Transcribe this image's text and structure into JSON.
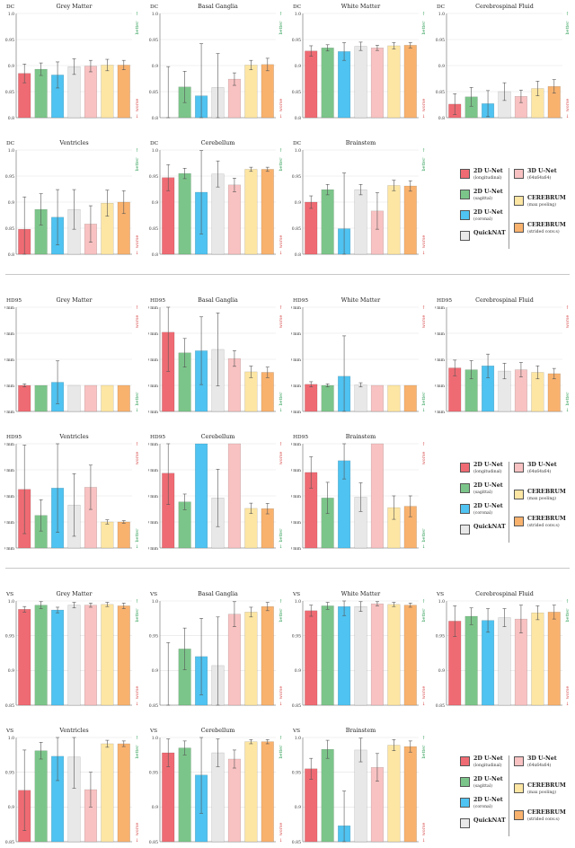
{
  "models": [
    {
      "name": "2D U-Net",
      "sub": "(longitudinal)",
      "color": "#ef6b73"
    },
    {
      "name": "2D U-Net",
      "sub": "(sagittal)",
      "color": "#7cc58a"
    },
    {
      "name": "2D U-Net",
      "sub": "(coronal)",
      "color": "#4fc3f1"
    },
    {
      "name": "QuickNAT",
      "sub": "",
      "color": "#e8e8e8"
    },
    {
      "name": "3D U-Net",
      "sub": "(64x64x64)",
      "color": "#f9c2c2"
    },
    {
      "name": "CEREBRUM",
      "sub": "(max pooling)",
      "color": "#fde6a3"
    },
    {
      "name": "CEREBRUM",
      "sub": "(strided conv.s)",
      "color": "#f9b26e"
    }
  ],
  "annotations": {
    "better": "better",
    "worse": "worse"
  },
  "chart_data": [
    {
      "type": "bar",
      "metric": "DC",
      "title": "Grey Matter",
      "ylim": [
        0.8,
        1.0
      ],
      "yticks": [
        "0.8",
        "0.85",
        "0.9",
        "0.95",
        "1.0"
      ],
      "better": "up",
      "values": [
        0.885,
        0.893,
        0.882,
        0.898,
        0.899,
        0.901,
        0.901
      ],
      "err": [
        0.018,
        0.012,
        0.025,
        0.015,
        0.011,
        0.011,
        0.009
      ]
    },
    {
      "type": "bar",
      "metric": "DC",
      "title": "Basal Ganglia",
      "ylim": [
        0.8,
        1.0
      ],
      "yticks": [
        "0.8",
        "0.85",
        "0.9",
        "0.95",
        "1.0"
      ],
      "better": "up",
      "values": [
        0.8,
        0.859,
        0.842,
        0.858,
        0.874,
        0.901,
        0.902
      ],
      "err": [
        0.098,
        0.03,
        0.1,
        0.065,
        0.012,
        0.009,
        0.012
      ]
    },
    {
      "type": "bar",
      "metric": "DC",
      "title": "White Matter",
      "ylim": [
        0.8,
        1.0
      ],
      "yticks": [
        "0.8",
        "0.85",
        "0.9",
        "0.95",
        "1.0"
      ],
      "better": "up",
      "values": [
        0.928,
        0.934,
        0.927,
        0.937,
        0.934,
        0.938,
        0.939
      ],
      "err": [
        0.01,
        0.006,
        0.017,
        0.008,
        0.005,
        0.006,
        0.005
      ]
    },
    {
      "type": "bar",
      "metric": "DC",
      "title": "Cerebrospinal Fluid",
      "ylim": [
        0.8,
        1.0
      ],
      "yticks": [
        "0.8",
        "0.85",
        "0.9",
        "0.95",
        "1.0"
      ],
      "better": "up",
      "values": [
        0.826,
        0.84,
        0.827,
        0.85,
        0.841,
        0.856,
        0.86
      ],
      "err": [
        0.02,
        0.018,
        0.025,
        0.017,
        0.012,
        0.014,
        0.013
      ]
    },
    {
      "type": "bar",
      "metric": "DC",
      "title": "Ventricles",
      "ylim": [
        0.8,
        1.0
      ],
      "yticks": [
        "0.8",
        "0.85",
        "0.9",
        "0.95",
        "1.0"
      ],
      "better": "up",
      "values": [
        0.848,
        0.886,
        0.871,
        0.886,
        0.858,
        0.898,
        0.9
      ],
      "err": [
        0.062,
        0.03,
        0.053,
        0.038,
        0.035,
        0.025,
        0.022
      ]
    },
    {
      "type": "bar",
      "metric": "DC",
      "title": "Cerebellum",
      "ylim": [
        0.8,
        1.0
      ],
      "yticks": [
        "0.8",
        "0.85",
        "0.9",
        "0.95",
        "1.0"
      ],
      "better": "up",
      "values": [
        0.947,
        0.955,
        0.919,
        0.954,
        0.933,
        0.963,
        0.963
      ],
      "err": [
        0.025,
        0.01,
        0.08,
        0.025,
        0.013,
        0.004,
        0.004
      ]
    },
    {
      "type": "bar",
      "metric": "DC",
      "title": "Brainstem",
      "ylim": [
        0.8,
        1.0
      ],
      "yticks": [
        "0.8",
        "0.85",
        "0.9",
        "0.95",
        "1.0"
      ],
      "better": "up",
      "values": [
        0.9,
        0.924,
        0.849,
        0.924,
        0.883,
        0.932,
        0.931
      ],
      "err": [
        0.012,
        0.01,
        0.107,
        0.01,
        0.035,
        0.01,
        0.01
      ]
    },
    {
      "type": "bar",
      "metric": "HD95",
      "title": "Grey Matter",
      "ylim": [
        0,
        4
      ],
      "yticks": [
        "0.0 mm",
        "1.0 mm",
        "2.0 mm",
        "3.0 mm",
        "4.0 mm"
      ],
      "better": "down",
      "values": [
        1.0,
        1.0,
        1.12,
        1.0,
        1.0,
        1.0,
        1.0
      ],
      "err": [
        0.06,
        0.0,
        0.82,
        0.0,
        0.0,
        0.0,
        0.0
      ]
    },
    {
      "type": "bar",
      "metric": "HD95",
      "title": "Basal Ganglia",
      "ylim": [
        0,
        4
      ],
      "yticks": [
        "0.0 mm",
        "1.0 mm",
        "2.0 mm",
        "3.0 mm",
        "4.0 mm"
      ],
      "better": "down",
      "values": [
        3.04,
        2.25,
        2.33,
        2.38,
        2.03,
        1.52,
        1.5
      ],
      "err": [
        1.5,
        0.55,
        1.3,
        1.4,
        0.3,
        0.22,
        0.2
      ]
    },
    {
      "type": "bar",
      "metric": "HD95",
      "title": "White Matter",
      "ylim": [
        0,
        4
      ],
      "yticks": [
        "0.0 mm",
        "1.0 mm",
        "2.0 mm",
        "3.0 mm",
        "4.0 mm"
      ],
      "better": "down",
      "values": [
        1.04,
        1.0,
        1.35,
        1.02,
        1.0,
        1.0,
        1.0
      ],
      "err": [
        0.1,
        0.06,
        1.55,
        0.08,
        0.0,
        0.0,
        0.0
      ]
    },
    {
      "type": "bar",
      "metric": "HD95",
      "title": "Cerebrospinal Fluid",
      "ylim": [
        0,
        4
      ],
      "yticks": [
        "0.0 mm",
        "1.0 mm",
        "2.0 mm",
        "3.0 mm",
        "4.0 mm"
      ],
      "better": "down",
      "values": [
        1.67,
        1.6,
        1.75,
        1.55,
        1.6,
        1.5,
        1.45
      ],
      "err": [
        0.3,
        0.35,
        0.45,
        0.3,
        0.28,
        0.25,
        0.2
      ]
    },
    {
      "type": "bar",
      "metric": "HD95",
      "title": "Ventricles",
      "ylim": [
        0,
        4
      ],
      "yticks": [
        "0.0 mm",
        "1.0 mm",
        "2.0 mm",
        "3.0 mm",
        "4.0 mm"
      ],
      "better": "down",
      "values": [
        2.25,
        1.25,
        2.3,
        1.65,
        2.33,
        1.0,
        1.0
      ],
      "err": [
        1.7,
        0.6,
        1.7,
        1.2,
        0.85,
        0.08,
        0.05
      ]
    },
    {
      "type": "bar",
      "metric": "HD95",
      "title": "Cerebellum",
      "ylim": [
        0,
        4
      ],
      "yticks": [
        "0.0 mm",
        "1.0 mm",
        "2.0 mm",
        "3.0 mm",
        "4.0 mm"
      ],
      "better": "down",
      "values": [
        2.87,
        1.77,
        4.0,
        1.92,
        4.0,
        1.52,
        1.51
      ],
      "err": [
        1.2,
        0.3,
        0.0,
        1.1,
        0.0,
        0.2,
        0.2
      ]
    },
    {
      "type": "bar",
      "metric": "HD95",
      "title": "Brainstem",
      "ylim": [
        0,
        4
      ],
      "yticks": [
        "0.0 mm",
        "1.0 mm",
        "2.0 mm",
        "3.0 mm",
        "4.0 mm"
      ],
      "better": "down",
      "values": [
        2.9,
        1.92,
        3.35,
        1.95,
        4.0,
        1.55,
        1.6
      ],
      "err": [
        0.6,
        0.6,
        0.7,
        0.55,
        0.0,
        0.45,
        0.4
      ]
    },
    {
      "type": "bar",
      "metric": "VS",
      "title": "Grey Matter",
      "ylim": [
        0.85,
        1.0
      ],
      "yticks": [
        "0.85",
        "0.9",
        "0.95",
        "1.0"
      ],
      "better": "up",
      "values": [
        0.988,
        0.994,
        0.987,
        0.994,
        0.994,
        0.995,
        0.993
      ],
      "err": [
        0.004,
        0.005,
        0.004,
        0.004,
        0.003,
        0.003,
        0.004
      ]
    },
    {
      "type": "bar",
      "metric": "VS",
      "title": "Basal Ganglia",
      "ylim": [
        0.85,
        1.0
      ],
      "yticks": [
        "0.85",
        "0.9",
        "0.95",
        "1.0"
      ],
      "better": "up",
      "values": [
        0.85,
        0.931,
        0.92,
        0.907,
        0.981,
        0.984,
        0.992
      ],
      "err": [
        0.09,
        0.03,
        0.055,
        0.07,
        0.018,
        0.007,
        0.006
      ]
    },
    {
      "type": "bar",
      "metric": "VS",
      "title": "White Matter",
      "ylim": [
        0.85,
        1.0
      ],
      "yticks": [
        "0.85",
        "0.9",
        "0.95",
        "1.0"
      ],
      "better": "up",
      "values": [
        0.986,
        0.993,
        0.992,
        0.992,
        0.996,
        0.995,
        0.994
      ],
      "err": [
        0.008,
        0.005,
        0.013,
        0.007,
        0.003,
        0.003,
        0.003
      ]
    },
    {
      "type": "bar",
      "metric": "VS",
      "title": "Cerebrospinal Fluid",
      "ylim": [
        0.85,
        1.0
      ],
      "yticks": [
        "0.85",
        "0.9",
        "0.95",
        "1.0"
      ],
      "better": "up",
      "values": [
        0.971,
        0.978,
        0.972,
        0.976,
        0.974,
        0.983,
        0.984
      ],
      "err": [
        0.022,
        0.012,
        0.017,
        0.013,
        0.02,
        0.01,
        0.01
      ]
    },
    {
      "type": "bar",
      "metric": "VS",
      "title": "Ventricles",
      "ylim": [
        0.85,
        1.0
      ],
      "yticks": [
        "0.85",
        "0.9",
        "0.95",
        "1.0"
      ],
      "better": "up",
      "values": [
        0.924,
        0.981,
        0.973,
        0.972,
        0.925,
        0.991,
        0.991
      ],
      "err": [
        0.058,
        0.012,
        0.035,
        0.045,
        0.025,
        0.005,
        0.004
      ]
    },
    {
      "type": "bar",
      "metric": "VS",
      "title": "Cerebellum",
      "ylim": [
        0.85,
        1.0
      ],
      "yticks": [
        "0.85",
        "0.9",
        "0.95",
        "1.0"
      ],
      "better": "up",
      "values": [
        0.978,
        0.985,
        0.946,
        0.978,
        0.969,
        0.994,
        0.994
      ],
      "err": [
        0.02,
        0.01,
        0.055,
        0.02,
        0.013,
        0.003,
        0.003
      ]
    },
    {
      "type": "bar",
      "metric": "VS",
      "title": "Brainstem",
      "ylim": [
        0.85,
        1.0
      ],
      "yticks": [
        "0.85",
        "0.9",
        "0.95",
        "1.0"
      ],
      "better": "up",
      "values": [
        0.955,
        0.983,
        0.873,
        0.982,
        0.957,
        0.989,
        0.987
      ],
      "err": [
        0.015,
        0.013,
        0.05,
        0.017,
        0.02,
        0.008,
        0.008
      ]
    }
  ]
}
